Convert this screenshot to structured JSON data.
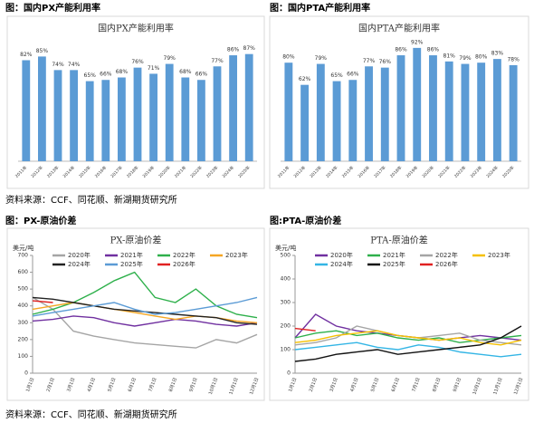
{
  "captions": [
    "图：国内PX产能利用率",
    "图：国内PTA产能利用率",
    "图：PX-原油价差",
    "图:PTA-原油价差"
  ],
  "sources": [
    "资料来源：CCF、同花顺、新湖期货研究所",
    "资料来源：CCF、同花顺、新湖期货研究所"
  ],
  "chart_data": [
    {
      "type": "bar",
      "title": "国内PX产能利用率",
      "color": "#5b9bd5",
      "categories": [
        "2011年",
        "2012年",
        "2013年",
        "2014年",
        "2015年",
        "2016年",
        "2017年",
        "2018年",
        "2019年",
        "2020年",
        "2021年",
        "2022年",
        "2023年",
        "2024年",
        "2025年"
      ],
      "values": [
        82,
        85,
        74,
        74,
        65,
        66,
        68,
        76,
        71,
        79,
        68,
        66,
        77,
        86,
        87
      ],
      "value_labels": [
        "82%",
        "85%",
        "74%",
        "74%",
        "65%",
        "66%",
        "68%",
        "76%",
        "71%",
        "79%",
        "68%",
        "66%",
        "77%",
        "86%",
        "87%"
      ],
      "ylim": [
        0,
        100
      ]
    },
    {
      "type": "bar",
      "title": "国内PTA产能利用率",
      "color": "#5b9bd5",
      "categories": [
        "2011年",
        "2012年",
        "2013年",
        "2014年",
        "2015年",
        "2016年",
        "2017年",
        "2018年",
        "2019年",
        "2020年",
        "2021年",
        "2022年",
        "2023年",
        "2024年",
        "2025年"
      ],
      "values": [
        80,
        62,
        79,
        65,
        66,
        77,
        76,
        86,
        92,
        86,
        81,
        79,
        80,
        83,
        78
      ],
      "value_labels": [
        "80%",
        "62%",
        "79%",
        "65%",
        "66%",
        "77%",
        "76%",
        "86%",
        "92%",
        "86%",
        "81%",
        "79%",
        "80%",
        "83%",
        "78%"
      ],
      "ylim": [
        0,
        100
      ]
    },
    {
      "type": "line",
      "title": "PX-原油价差",
      "y_label": "美元/吨",
      "categories": [
        "1月1日",
        "2月1日",
        "3月1日",
        "4月1日",
        "5月1日",
        "6月1日",
        "7月1日",
        "8月1日",
        "9月1日",
        "10月1日",
        "11月1日",
        "12月1日"
      ],
      "ylim": [
        0,
        700
      ],
      "yticks": [
        0,
        100,
        200,
        300,
        400,
        500,
        600,
        700
      ],
      "series": [
        {
          "name": "2020年",
          "color": "#a5a5a5",
          "values": [
            450,
            380,
            250,
            220,
            200,
            180,
            170,
            160,
            150,
            200,
            180,
            230
          ]
        },
        {
          "name": "2021年",
          "color": "#7030a0",
          "values": [
            310,
            320,
            340,
            330,
            300,
            280,
            300,
            320,
            310,
            290,
            280,
            300
          ]
        },
        {
          "name": "2022年",
          "color": "#2eb04b",
          "values": [
            350,
            380,
            420,
            480,
            550,
            600,
            450,
            420,
            500,
            400,
            350,
            330
          ]
        },
        {
          "name": "2023年",
          "color": "#f5a623",
          "values": [
            380,
            400,
            420,
            400,
            380,
            360,
            340,
            320,
            340,
            330,
            310,
            300
          ]
        },
        {
          "name": "2024年",
          "color": "#222222",
          "values": [
            450,
            440,
            420,
            400,
            380,
            370,
            360,
            350,
            340,
            330,
            300,
            290
          ]
        },
        {
          "name": "2025年",
          "color": "#5b9bd5",
          "values": [
            340,
            360,
            380,
            400,
            420,
            380,
            350,
            360,
            380,
            400,
            420,
            450
          ]
        },
        {
          "name": "2026年",
          "color": "#e02020",
          "values": [
            430,
            420,
            null,
            null,
            null,
            null,
            null,
            null,
            null,
            null,
            null,
            null
          ]
        }
      ]
    },
    {
      "type": "line",
      "title": "PTA-原油价差",
      "y_label": "美元/吨",
      "categories": [
        "1月1日",
        "2月1日",
        "3月1日",
        "4月1日",
        "5月1日",
        "6月1日",
        "7月1日",
        "8月1日",
        "9月1日",
        "10月1日",
        "11月1日",
        "12月1日"
      ],
      "ylim": [
        0,
        500
      ],
      "yticks": [
        0,
        100,
        200,
        300,
        400,
        500
      ],
      "series": [
        {
          "name": "2020年",
          "color": "#7030a0",
          "values": [
            150,
            250,
            200,
            180,
            170,
            160,
            150,
            140,
            150,
            160,
            150,
            140
          ]
        },
        {
          "name": "2021年",
          "color": "#2eb04b",
          "values": [
            150,
            170,
            180,
            160,
            170,
            150,
            140,
            150,
            130,
            140,
            150,
            160
          ]
        },
        {
          "name": "2022年",
          "color": "#a5a5a5",
          "values": [
            120,
            130,
            150,
            200,
            180,
            160,
            150,
            160,
            170,
            140,
            130,
            120
          ]
        },
        {
          "name": "2023年",
          "color": "#f5c000",
          "values": [
            130,
            140,
            160,
            170,
            180,
            160,
            150,
            140,
            150,
            130,
            120,
            140
          ]
        },
        {
          "name": "2024年",
          "color": "#33b5e5",
          "values": [
            100,
            110,
            120,
            130,
            110,
            100,
            120,
            110,
            90,
            80,
            70,
            80
          ]
        },
        {
          "name": "2025年",
          "color": "#111111",
          "values": [
            50,
            60,
            80,
            90,
            100,
            80,
            90,
            100,
            110,
            120,
            150,
            200
          ]
        },
        {
          "name": "2026年",
          "color": "#e02020",
          "values": [
            190,
            180,
            null,
            null,
            null,
            null,
            null,
            null,
            null,
            null,
            null,
            null
          ]
        }
      ]
    }
  ]
}
